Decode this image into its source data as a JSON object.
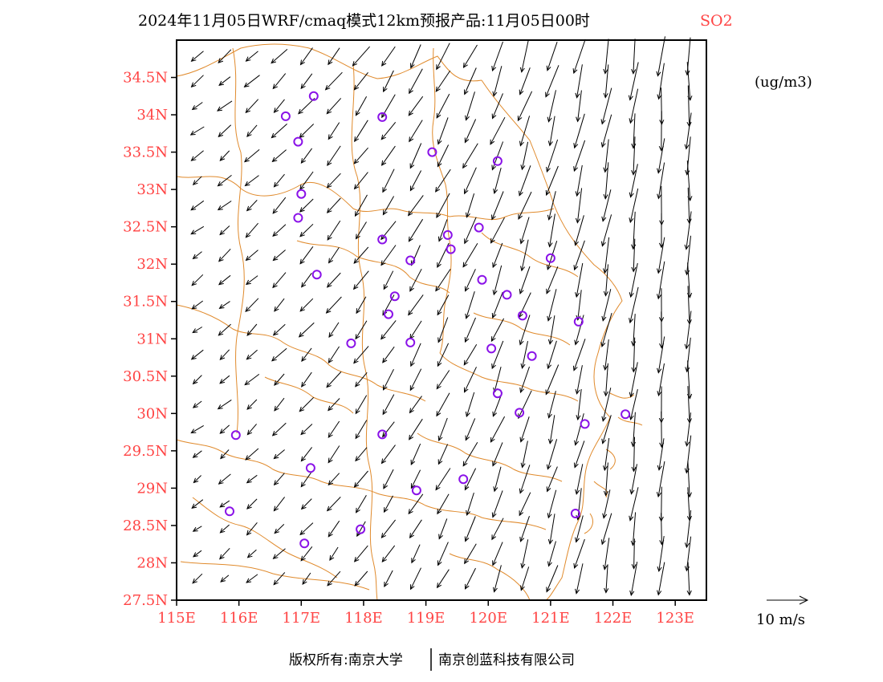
{
  "title": {
    "main": "2024年11月05日WRF/cmaq模式12km预报产品:11月05日00时",
    "pollutant": "SO2"
  },
  "units": "(ug/m3)",
  "lat_ticks": [
    "34.5N",
    "34N",
    "33.5N",
    "33N",
    "32.5N",
    "32N",
    "31.5N",
    "31N",
    "30.5N",
    "30N",
    "29.5N",
    "29N",
    "28.5N",
    "28N",
    "27.5N"
  ],
  "lon_ticks": [
    "115E",
    "116E",
    "117E",
    "118E",
    "119E",
    "120E",
    "121E",
    "122E",
    "123E"
  ],
  "map_extent": {
    "lon_min": 115.0,
    "lon_max": 123.5,
    "lat_min": 27.5,
    "lat_max": 35.0
  },
  "wind_scale": {
    "label": "10 m/s",
    "speed": 10
  },
  "footer": {
    "left": "版权所有:南京大学",
    "right": "南京创蓝科技有限公司"
  },
  "colors": {
    "tick_labels": "#ff4444",
    "pollutant_label": "#ff4444",
    "borders": "#e08a2c",
    "stations": "#8a12e8",
    "wind_vectors": "#000000"
  },
  "station_markers": [
    {
      "lon": 117.2,
      "lat": 34.25
    },
    {
      "lon": 116.75,
      "lat": 33.98
    },
    {
      "lon": 118.3,
      "lat": 33.97
    },
    {
      "lon": 116.95,
      "lat": 33.64
    },
    {
      "lon": 119.1,
      "lat": 33.5
    },
    {
      "lon": 120.15,
      "lat": 33.38
    },
    {
      "lon": 117.0,
      "lat": 32.94
    },
    {
      "lon": 116.95,
      "lat": 32.62
    },
    {
      "lon": 119.85,
      "lat": 32.49
    },
    {
      "lon": 119.35,
      "lat": 32.39
    },
    {
      "lon": 118.3,
      "lat": 32.33
    },
    {
      "lon": 119.4,
      "lat": 32.2
    },
    {
      "lon": 118.75,
      "lat": 32.05
    },
    {
      "lon": 121.0,
      "lat": 32.08
    },
    {
      "lon": 117.25,
      "lat": 31.86
    },
    {
      "lon": 119.9,
      "lat": 31.79
    },
    {
      "lon": 118.5,
      "lat": 31.57
    },
    {
      "lon": 120.3,
      "lat": 31.59
    },
    {
      "lon": 118.4,
      "lat": 31.33
    },
    {
      "lon": 120.55,
      "lat": 31.31
    },
    {
      "lon": 121.45,
      "lat": 31.23
    },
    {
      "lon": 117.8,
      "lat": 30.94
    },
    {
      "lon": 118.75,
      "lat": 30.95
    },
    {
      "lon": 120.05,
      "lat": 30.87
    },
    {
      "lon": 120.7,
      "lat": 30.77
    },
    {
      "lon": 120.15,
      "lat": 30.27
    },
    {
      "lon": 120.5,
      "lat": 30.01
    },
    {
      "lon": 121.55,
      "lat": 29.86
    },
    {
      "lon": 122.2,
      "lat": 29.99
    },
    {
      "lon": 115.95,
      "lat": 29.71
    },
    {
      "lon": 118.3,
      "lat": 29.72
    },
    {
      "lon": 117.15,
      "lat": 29.27
    },
    {
      "lon": 119.6,
      "lat": 29.12
    },
    {
      "lon": 118.85,
      "lat": 28.97
    },
    {
      "lon": 115.85,
      "lat": 28.69
    },
    {
      "lon": 121.4,
      "lat": 28.66
    },
    {
      "lon": 117.95,
      "lat": 28.45
    },
    {
      "lon": 117.05,
      "lat": 28.26
    }
  ]
}
